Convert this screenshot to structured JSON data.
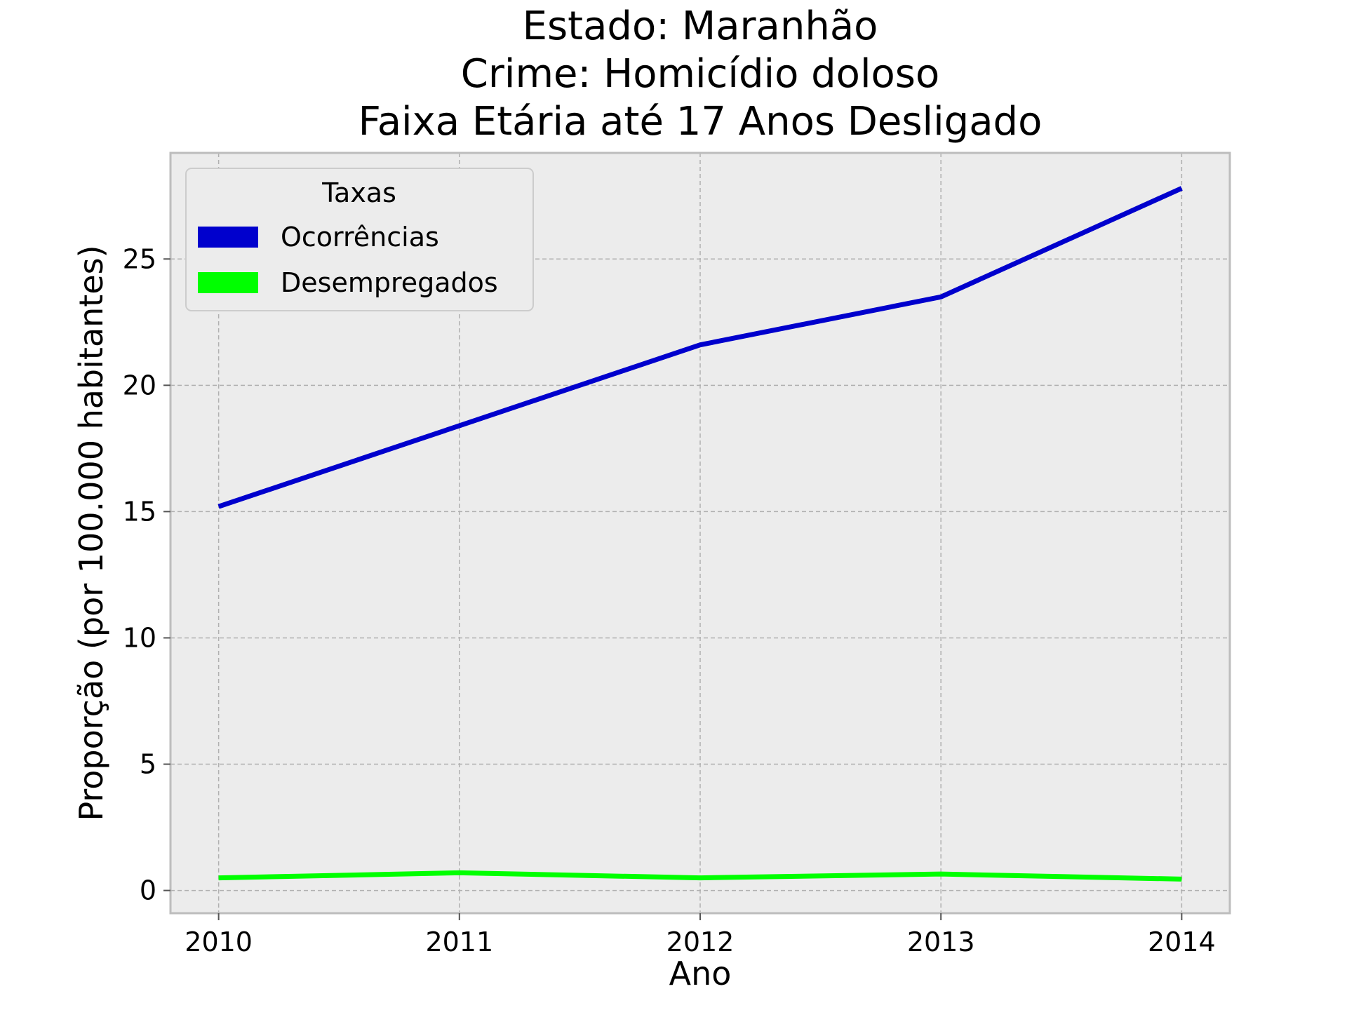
{
  "chart_data": {
    "type": "line",
    "title_lines": [
      "Estado: Maranhão",
      "Crime: Homicídio doloso",
      "Faixa Etária até 17 Anos   Desligado"
    ],
    "xlabel": "Ano",
    "ylabel": "Proporção (por 100.000 habitantes)",
    "x": [
      2010,
      2011,
      2012,
      2013,
      2014
    ],
    "x_tick_labels": [
      "2010",
      "2011",
      "2012",
      "2013",
      "2014"
    ],
    "y_ticks": [
      0,
      5,
      10,
      15,
      20,
      25
    ],
    "y_tick_labels": [
      "0",
      "5",
      "10",
      "15",
      "20",
      "25"
    ],
    "xlim": [
      2009.8,
      2014.2
    ],
    "ylim": [
      -0.9,
      29.2
    ],
    "grid": true,
    "legend": {
      "title": "Taxas",
      "placement": "top-left"
    },
    "series": [
      {
        "name": "Ocorrências",
        "color": "#0000cd",
        "values": [
          15.2,
          18.4,
          21.6,
          23.5,
          27.8
        ]
      },
      {
        "name": "Desempregados",
        "color": "#00ff00",
        "values": [
          0.5,
          0.7,
          0.5,
          0.65,
          0.45
        ]
      }
    ],
    "background": "#ececec",
    "frame_color": "#bdbdbd"
  }
}
